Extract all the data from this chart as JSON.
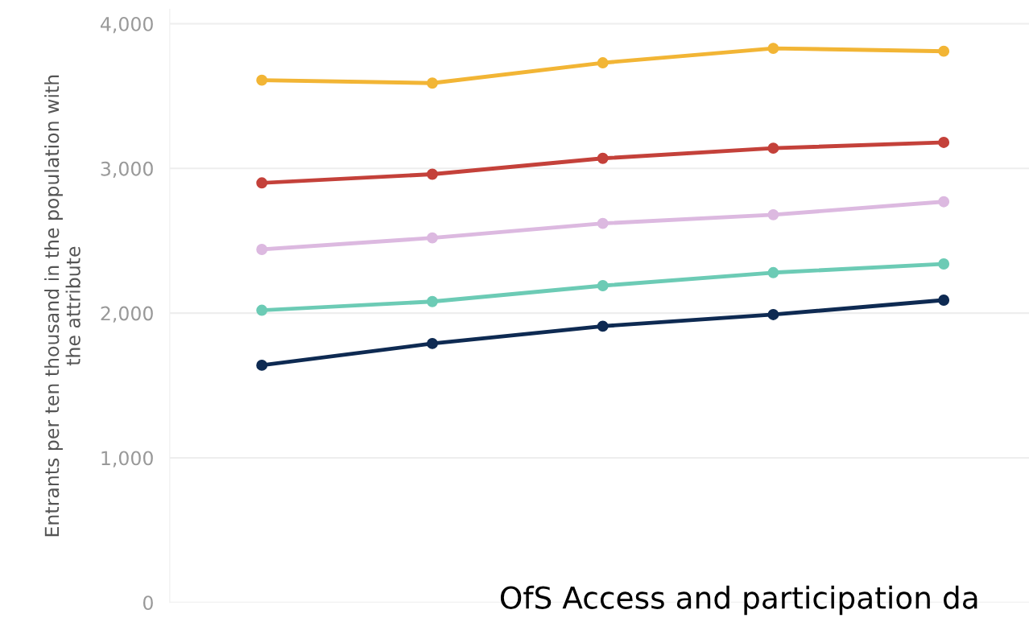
{
  "chart_data": {
    "type": "line",
    "ylabel": "Entrants per ten thousand in the population with\nthe attribute",
    "categories": [
      null,
      null,
      null,
      null,
      null
    ],
    "series": [
      {
        "color": "#f2b535",
        "values": [
          3610,
          3590,
          3730,
          3830,
          3810
        ]
      },
      {
        "color": "#c4413a",
        "values": [
          2900,
          2960,
          3070,
          3140,
          3180
        ]
      },
      {
        "color": "#dcb9e0",
        "values": [
          2440,
          2520,
          2620,
          2680,
          2770
        ]
      },
      {
        "color": "#6ccbb5",
        "values": [
          2020,
          2080,
          2190,
          2280,
          2340
        ]
      },
      {
        "color": "#0e2a52",
        "values": [
          1640,
          1790,
          1910,
          1990,
          2090
        ]
      }
    ],
    "ylim": [
      0,
      4100
    ],
    "yticks": [
      {
        "value": 0,
        "label": "0"
      },
      {
        "value": 1000,
        "label": "1,000"
      },
      {
        "value": 2000,
        "label": "2,000"
      },
      {
        "value": 3000,
        "label": "3,000"
      },
      {
        "value": 4000,
        "label": "4,000"
      }
    ],
    "grid": "y",
    "marker": "circle",
    "line_style": "solid",
    "tick_labels": "y",
    "annotations": [
      "OfS Access and participation da"
    ]
  }
}
